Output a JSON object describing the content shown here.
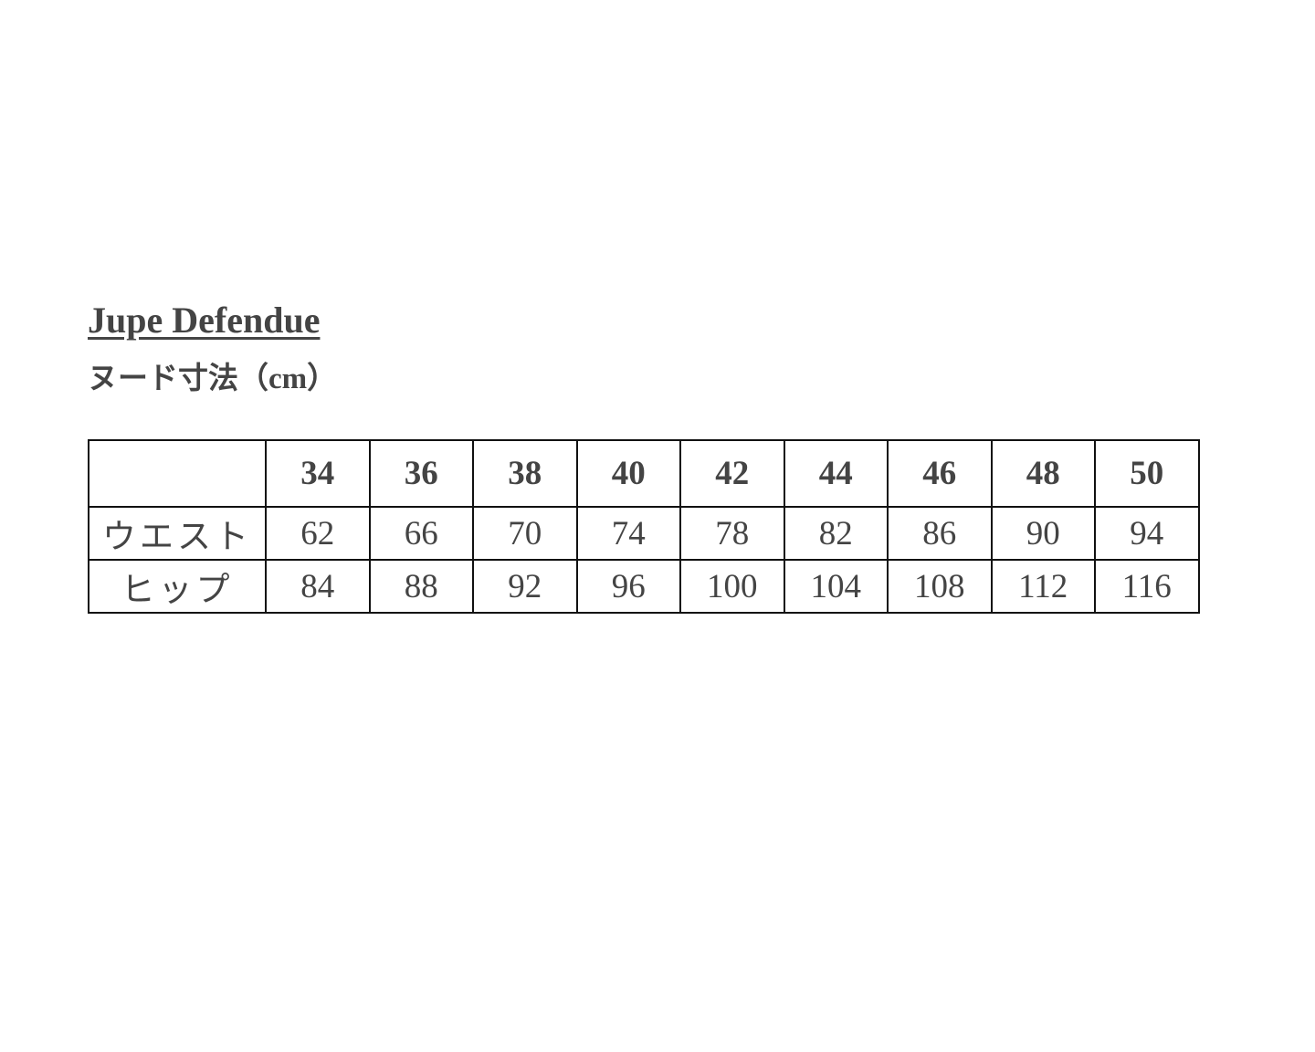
{
  "document": {
    "title": "Jupe Defendue",
    "subtitle": "ヌード寸法（cm）"
  },
  "table": {
    "header": [
      "",
      "34",
      "36",
      "38",
      "40",
      "42",
      "44",
      "46",
      "48",
      "50"
    ],
    "rows": [
      {
        "label": "ウエスト",
        "values": [
          "62",
          "66",
          "70",
          "74",
          "78",
          "82",
          "86",
          "90",
          "94"
        ]
      },
      {
        "label": "ヒップ",
        "values": [
          "84",
          "88",
          "92",
          "96",
          "100",
          "104",
          "108",
          "112",
          "116"
        ]
      }
    ]
  },
  "colors": {
    "text": "#444444",
    "border": "#111111"
  }
}
